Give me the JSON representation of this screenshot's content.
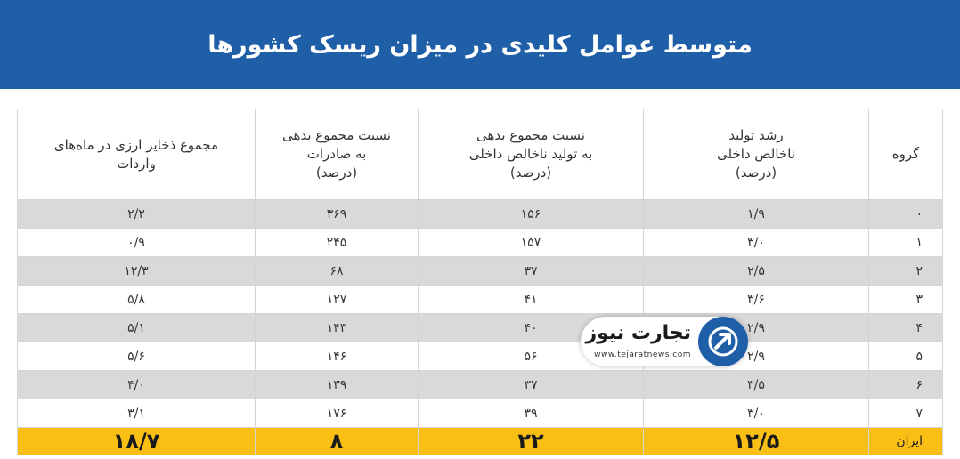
{
  "title": "متوسط عوامل کلیدی در میزان ریسک کشورها",
  "table": {
    "headers": [
      "گروه",
      "رشد تولید\nناخالص داخلی\n(درصد)",
      "نسبت مجموع بدهی\nبه تولید ناخالص داخلی\n(درصد)",
      "نسبت مجموع بدهی\nبه صادرات\n(درصد)",
      "مجموع ذخایر ارزی در ماه‌های\nواردات"
    ],
    "rows": [
      [
        "۰",
        "۱/۹",
        "۱۵۶",
        "۳۶۹",
        "۲/۲"
      ],
      [
        "۱",
        "۳/۰",
        "۱۵۷",
        "۲۴۵",
        "۰/۹"
      ],
      [
        "۲",
        "۲/۵",
        "۳۷",
        "۶۸",
        "۱۲/۳"
      ],
      [
        "۳",
        "۳/۶",
        "۴۱",
        "۱۲۷",
        "۵/۸"
      ],
      [
        "۴",
        "۲/۹",
        "۴۰",
        "۱۴۳",
        "۵/۱"
      ],
      [
        "۵",
        "۲/۹",
        "۵۶",
        "۱۴۶",
        "۵/۶"
      ],
      [
        "۶",
        "۳/۵",
        "۳۷",
        "۱۳۹",
        "۴/۰"
      ],
      [
        "۷",
        "۳/۰",
        "۳۹",
        "۱۷۶",
        "۳/۱"
      ]
    ],
    "iran_row": [
      "ایران",
      "۱۲/۵",
      "۲۲",
      "۸",
      "۱۸/۷"
    ],
    "colors": {
      "header_bg": "#1f5fa8",
      "alt_row": "#d9d9d9",
      "highlight_row": "#f9bf15"
    }
  },
  "logo": {
    "name": "تجارت نیوز",
    "url": "www.tejaratnews.com",
    "icon": "arrow-up-right-icon"
  }
}
